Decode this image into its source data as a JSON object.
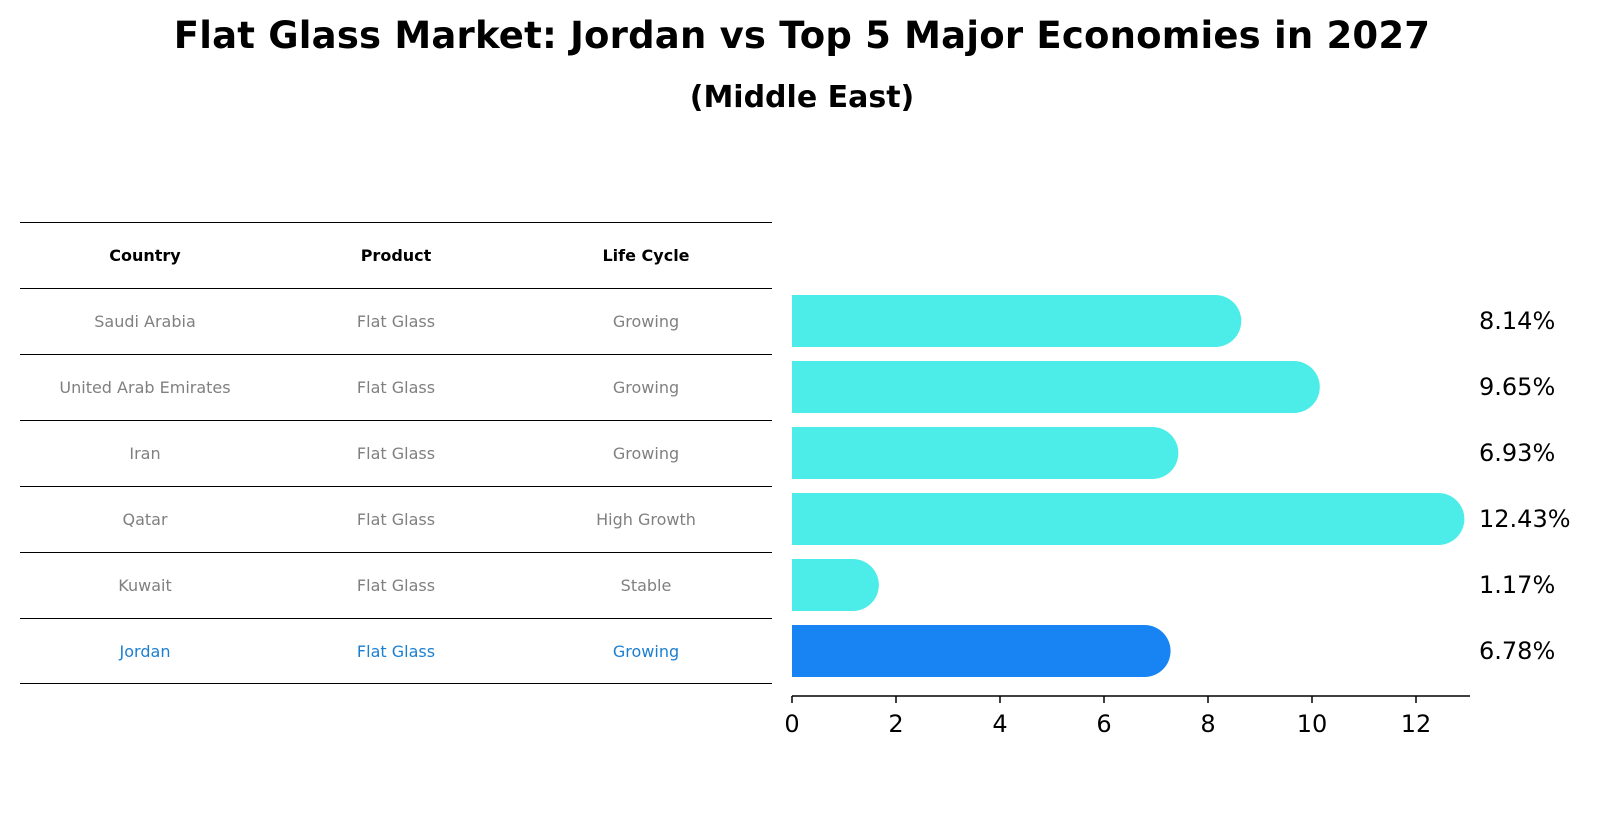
{
  "chart_data": {
    "type": "bar",
    "orientation": "horizontal",
    "title": "Flat Glass Market: Jordan vs Top 5 Major Economies in 2027",
    "subtitle": "(Middle East)",
    "categories": [
      "Saudi Arabia",
      "United Arab Emirates",
      "Iran",
      "Qatar",
      "Kuwait",
      "Jordan"
    ],
    "values": [
      8.14,
      9.65,
      6.93,
      12.43,
      1.17,
      6.78
    ],
    "value_labels": [
      "8.14%",
      "9.65%",
      "6.93%",
      "12.43%",
      "1.17%",
      "6.78%"
    ],
    "xlim": [
      0,
      13
    ],
    "xticks": [
      0,
      2,
      4,
      6,
      8,
      10,
      12
    ],
    "grid": false,
    "highlight_index": 5,
    "colors": {
      "bar": "#4cede9",
      "highlight": "#1884f4",
      "highlight_text": "#1b7fd1",
      "muted_text": "#808080"
    }
  },
  "table": {
    "headers": [
      "Country",
      "Product",
      "Life Cycle"
    ],
    "rows": [
      [
        "Saudi Arabia",
        "Flat Glass",
        "Growing"
      ],
      [
        "United Arab Emirates",
        "Flat Glass",
        "Growing"
      ],
      [
        "Iran",
        "Flat Glass",
        "Growing"
      ],
      [
        "Qatar",
        "Flat Glass",
        "High Growth"
      ],
      [
        "Kuwait",
        "Flat Glass",
        "Stable"
      ],
      [
        "Jordan",
        "Flat Glass",
        "Growing"
      ]
    ]
  }
}
